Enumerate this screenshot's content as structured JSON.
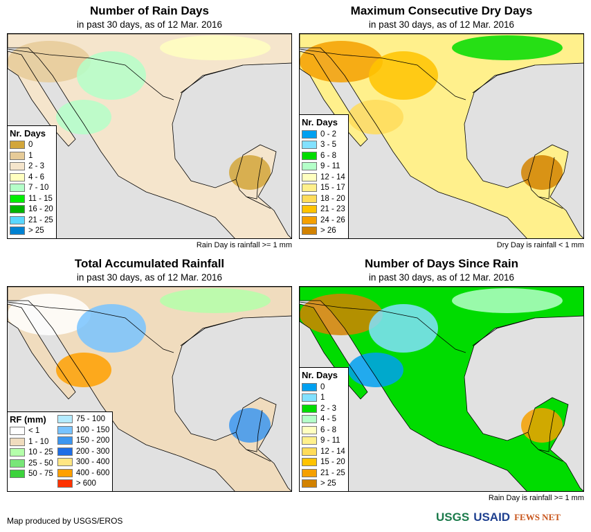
{
  "panels": [
    {
      "title": "Number of Rain Days",
      "subtitle": "in past 30 days, as of 12 Mar. 2016",
      "note": "Rain Day is rainfall >= 1 mm",
      "legend_title": "Nr. Days",
      "legend": [
        {
          "label": "0",
          "color": "#d2a63a"
        },
        {
          "label": "1",
          "color": "#e6cb98"
        },
        {
          "label": "2 - 3",
          "color": "#f5e5cc"
        },
        {
          "label": "4 - 6",
          "color": "#ffffc0"
        },
        {
          "label": "7 - 10",
          "color": "#b4ffc8"
        },
        {
          "label": "11 - 15",
          "color": "#00ee00"
        },
        {
          "label": "16 - 20",
          "color": "#00b400"
        },
        {
          "label": "21 - 25",
          "color": "#5ad7ff"
        },
        {
          "label": "> 25",
          "color": "#0082d2"
        }
      ],
      "base": "#f5e5cc",
      "patches": [
        "#e6cb98",
        "#b4ffc8",
        "#ffffc0",
        "#d2a63a",
        "#b4ffc8"
      ]
    },
    {
      "title": "Maximum Consecutive Dry Days",
      "subtitle": "in past 30 days, as of 12 Mar. 2016",
      "note": "Dry Day is rainfall < 1 mm",
      "legend_title": "Nr. Days",
      "legend": [
        {
          "label": "0 - 2",
          "color": "#00a0f0"
        },
        {
          "label": "3 - 5",
          "color": "#82e1ff"
        },
        {
          "label": "6 - 8",
          "color": "#00dc00"
        },
        {
          "label": "9 - 11",
          "color": "#b4ffc8"
        },
        {
          "label": "12 - 14",
          "color": "#ffffc0"
        },
        {
          "label": "15 - 17",
          "color": "#fff08c"
        },
        {
          "label": "18 - 20",
          "color": "#ffdc5a"
        },
        {
          "label": "21 - 23",
          "color": "#ffc300"
        },
        {
          "label": "24 - 26",
          "color": "#f5a000"
        },
        {
          "label": "> 26",
          "color": "#d28200"
        }
      ],
      "base": "#fff08c",
      "patches": [
        "#f5a000",
        "#ffc300",
        "#00dc00",
        "#d28200",
        "#ffdc5a"
      ]
    },
    {
      "title": "Total Accumulated Rainfall",
      "subtitle": "in past 30 days, as of 12 Mar. 2016",
      "note": "",
      "legend_title": "RF (mm)",
      "legend": [
        {
          "label": "< 1",
          "color": "#ffffff"
        },
        {
          "label": "1 - 10",
          "color": "#f0dcbe"
        },
        {
          "label": "10 - 25",
          "color": "#b4ffaa"
        },
        {
          "label": "25 - 50",
          "color": "#78e678"
        },
        {
          "label": "50 - 75",
          "color": "#3cd23c"
        },
        {
          "label": "75 - 100",
          "color": "#b4ebff"
        },
        {
          "label": "100 - 150",
          "color": "#78c3ff"
        },
        {
          "label": "150 - 200",
          "color": "#3c96f0"
        },
        {
          "label": "200 - 300",
          "color": "#1e6ee6"
        },
        {
          "label": "300 - 400",
          "color": "#ffe682"
        },
        {
          "label": "400 - 600",
          "color": "#ffa000"
        },
        {
          "label": "> 600",
          "color": "#ff3200"
        }
      ],
      "base": "#f0dcbe",
      "patches": [
        "#ffffff",
        "#78c3ff",
        "#b4ffaa",
        "#3c96f0",
        "#ffa000"
      ]
    },
    {
      "title": "Number of Days Since Rain",
      "subtitle": "in past 30 days, as of 12 Mar. 2016",
      "note": "Rain Day is rainfall >= 1 mm",
      "legend_title": "Nr. Days",
      "legend": [
        {
          "label": "0",
          "color": "#00a0f0"
        },
        {
          "label": "1",
          "color": "#82e1ff"
        },
        {
          "label": "2 - 3",
          "color": "#00dc00"
        },
        {
          "label": "4 - 5",
          "color": "#b4ffc8"
        },
        {
          "label": "6 - 8",
          "color": "#ffffc0"
        },
        {
          "label": "9 - 11",
          "color": "#fff08c"
        },
        {
          "label": "12 - 14",
          "color": "#ffdc5a"
        },
        {
          "label": "15 - 20",
          "color": "#ffc300"
        },
        {
          "label": "21 - 25",
          "color": "#f5a000"
        },
        {
          "label": "> 25",
          "color": "#d28200"
        }
      ],
      "base": "#00dc00",
      "patches": [
        "#d28200",
        "#82e1ff",
        "#b4ffc8",
        "#f5a000",
        "#00a0f0"
      ]
    }
  ],
  "credit": "Map produced by USGS/EROS",
  "logos": {
    "usgs": "USGS",
    "usaid": "USAID",
    "fews": "FEWS NET"
  }
}
